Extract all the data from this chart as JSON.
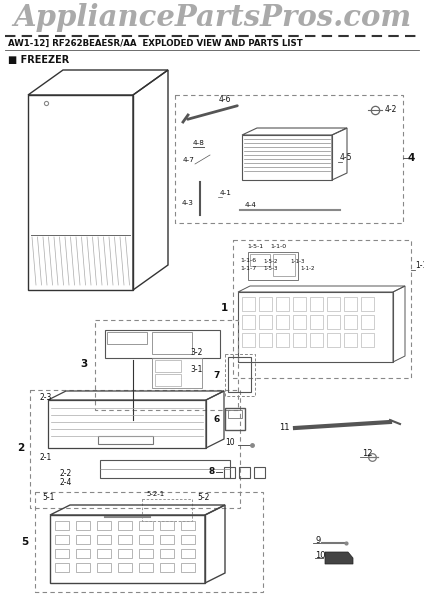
{
  "title_logo": "AppliancePartsPros.com",
  "subtitle": "AW1-12] RF262BEAESR/AA  EXPLODED VIEW AND PARTS LIST",
  "section": "FREEZER",
  "bg_color": "#ffffff",
  "logo_color": "#aaaaaa",
  "text_color": "#111111",
  "dashed_box_color": "#888888",
  "figsize": [
    4.24,
    6.0
  ],
  "dpi": 100
}
